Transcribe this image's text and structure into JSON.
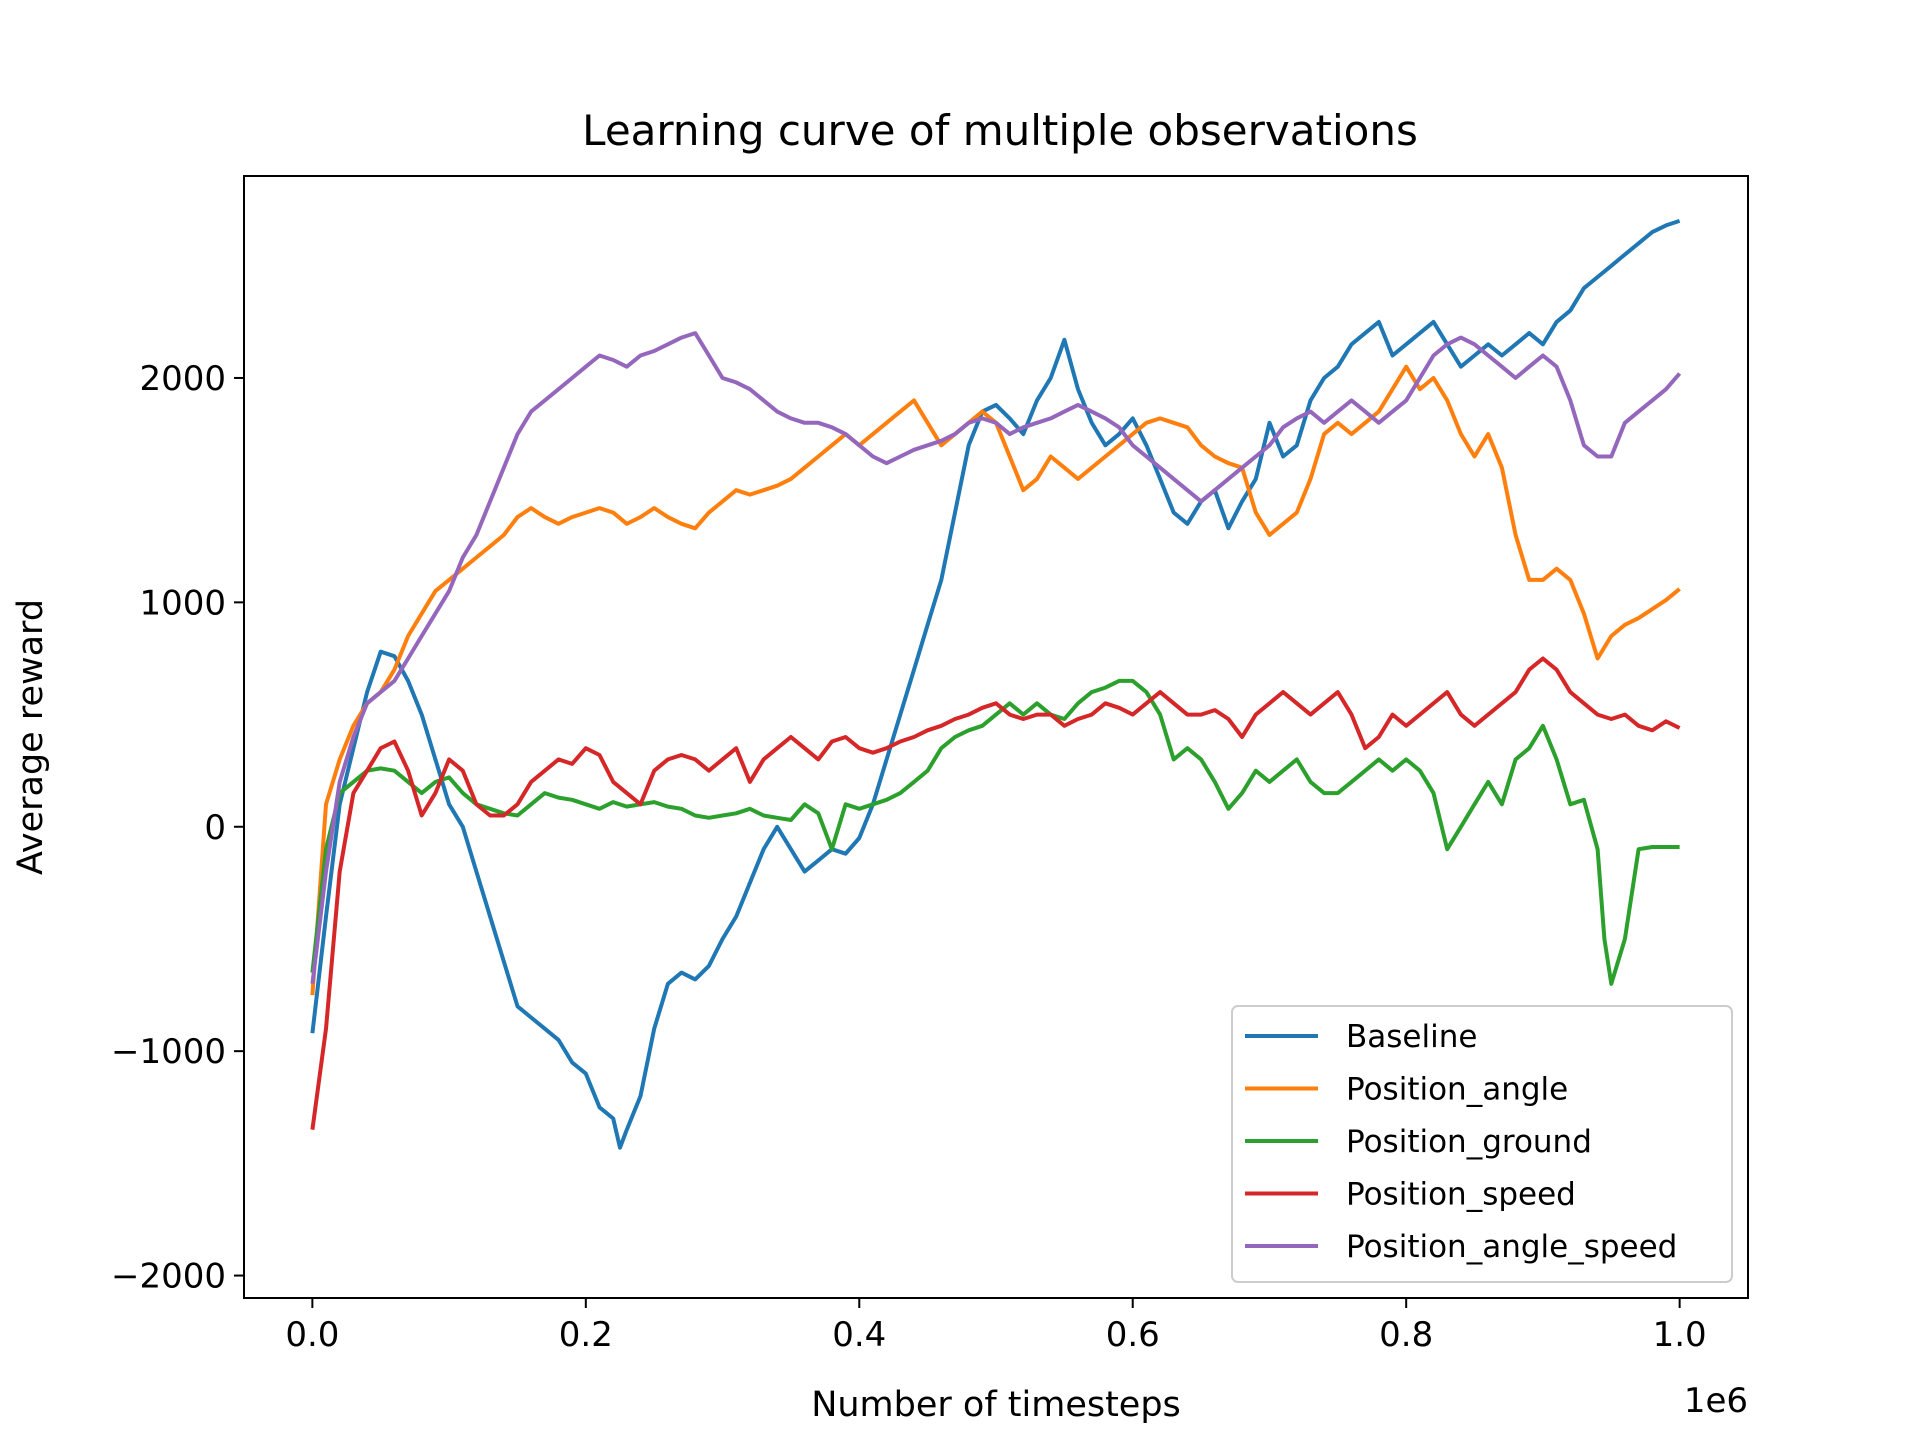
{
  "chart_data": {
    "type": "line",
    "title": "Learning curve of multiple observations",
    "xlabel": "Number of timesteps",
    "ylabel": "Average reward",
    "x_offset_label": "1e6",
    "xlim": [
      -0.05,
      1.05
    ],
    "ylim": [
      -2100,
      2900
    ],
    "xticks": [
      0.0,
      0.2,
      0.4,
      0.6,
      0.8,
      1.0
    ],
    "xtick_labels": [
      "0.0",
      "0.2",
      "0.4",
      "0.6",
      "0.8",
      "1.0"
    ],
    "yticks": [
      -2000,
      -1000,
      0,
      1000,
      2000
    ],
    "ytick_labels": [
      "−2000",
      "−1000",
      "0",
      "1000",
      "2000"
    ],
    "grid": false,
    "legend_position": "lower-right",
    "series": [
      {
        "name": "Baseline",
        "color": "#1f77b4",
        "x": [
          0.0,
          0.01,
          0.02,
          0.03,
          0.04,
          0.05,
          0.06,
          0.07,
          0.08,
          0.09,
          0.1,
          0.11,
          0.12,
          0.13,
          0.14,
          0.15,
          0.16,
          0.17,
          0.18,
          0.19,
          0.2,
          0.21,
          0.22,
          0.225,
          0.23,
          0.24,
          0.25,
          0.26,
          0.27,
          0.28,
          0.29,
          0.3,
          0.31,
          0.32,
          0.33,
          0.34,
          0.35,
          0.36,
          0.37,
          0.38,
          0.39,
          0.4,
          0.41,
          0.42,
          0.43,
          0.44,
          0.45,
          0.46,
          0.47,
          0.48,
          0.49,
          0.5,
          0.51,
          0.52,
          0.53,
          0.54,
          0.55,
          0.56,
          0.57,
          0.58,
          0.59,
          0.6,
          0.61,
          0.62,
          0.63,
          0.64,
          0.65,
          0.66,
          0.67,
          0.68,
          0.69,
          0.7,
          0.71,
          0.72,
          0.73,
          0.74,
          0.75,
          0.76,
          0.77,
          0.78,
          0.79,
          0.8,
          0.81,
          0.82,
          0.83,
          0.84,
          0.85,
          0.86,
          0.87,
          0.88,
          0.89,
          0.9,
          0.91,
          0.92,
          0.93,
          0.94,
          0.95,
          0.96,
          0.97,
          0.98,
          0.99,
          1.0
        ],
        "values": [
          -920,
          -400,
          100,
          350,
          600,
          780,
          760,
          650,
          500,
          300,
          100,
          0,
          -200,
          -400,
          -600,
          -800,
          -850,
          -900,
          -950,
          -1050,
          -1100,
          -1250,
          -1300,
          -1430,
          -1350,
          -1200,
          -900,
          -700,
          -650,
          -680,
          -620,
          -500,
          -400,
          -250,
          -100,
          0,
          -100,
          -200,
          -150,
          -100,
          -120,
          -50,
          100,
          300,
          500,
          700,
          900,
          1100,
          1400,
          1700,
          1850,
          1880,
          1820,
          1750,
          1900,
          2000,
          2170,
          1950,
          1800,
          1700,
          1750,
          1820,
          1700,
          1550,
          1400,
          1350,
          1450,
          1500,
          1330,
          1450,
          1550,
          1800,
          1650,
          1700,
          1900,
          2000,
          2050,
          2150,
          2200,
          2250,
          2100,
          2150,
          2200,
          2250,
          2150,
          2050,
          2100,
          2150,
          2100,
          2150,
          2200,
          2150,
          2250,
          2300,
          2400,
          2450,
          2500,
          2550,
          2600,
          2650,
          2680,
          2700
        ]
      },
      {
        "name": "Position_angle",
        "color": "#ff7f0e",
        "x": [
          0.0,
          0.01,
          0.02,
          0.03,
          0.04,
          0.05,
          0.06,
          0.07,
          0.08,
          0.09,
          0.1,
          0.11,
          0.12,
          0.13,
          0.14,
          0.15,
          0.16,
          0.17,
          0.18,
          0.19,
          0.2,
          0.21,
          0.22,
          0.23,
          0.24,
          0.25,
          0.26,
          0.27,
          0.28,
          0.29,
          0.3,
          0.31,
          0.32,
          0.33,
          0.34,
          0.35,
          0.36,
          0.37,
          0.38,
          0.39,
          0.4,
          0.41,
          0.42,
          0.43,
          0.44,
          0.45,
          0.46,
          0.47,
          0.48,
          0.49,
          0.5,
          0.51,
          0.52,
          0.53,
          0.54,
          0.55,
          0.56,
          0.57,
          0.58,
          0.59,
          0.6,
          0.61,
          0.62,
          0.63,
          0.64,
          0.65,
          0.66,
          0.67,
          0.68,
          0.69,
          0.7,
          0.71,
          0.72,
          0.73,
          0.74,
          0.75,
          0.76,
          0.77,
          0.78,
          0.79,
          0.8,
          0.81,
          0.82,
          0.83,
          0.84,
          0.85,
          0.86,
          0.87,
          0.88,
          0.89,
          0.9,
          0.91,
          0.92,
          0.93,
          0.94,
          0.95,
          0.96,
          0.97,
          0.98,
          0.99,
          1.0
        ],
        "values": [
          -750,
          100,
          300,
          450,
          550,
          600,
          700,
          850,
          950,
          1050,
          1100,
          1150,
          1200,
          1250,
          1300,
          1380,
          1420,
          1380,
          1350,
          1380,
          1400,
          1420,
          1400,
          1350,
          1380,
          1420,
          1380,
          1350,
          1330,
          1400,
          1450,
          1500,
          1480,
          1500,
          1520,
          1550,
          1600,
          1650,
          1700,
          1750,
          1700,
          1750,
          1800,
          1850,
          1900,
          1800,
          1700,
          1750,
          1800,
          1850,
          1800,
          1650,
          1500,
          1550,
          1650,
          1600,
          1550,
          1600,
          1650,
          1700,
          1750,
          1800,
          1820,
          1800,
          1780,
          1700,
          1650,
          1620,
          1600,
          1400,
          1300,
          1350,
          1400,
          1550,
          1750,
          1800,
          1750,
          1800,
          1850,
          1950,
          2050,
          1950,
          2000,
          1900,
          1750,
          1650,
          1750,
          1600,
          1300,
          1100,
          1100,
          1150,
          1100,
          950,
          750,
          850,
          900,
          930,
          970,
          1010,
          1060
        ]
      },
      {
        "name": "Position_ground",
        "color": "#2ca02c",
        "x": [
          0.0,
          0.01,
          0.02,
          0.03,
          0.04,
          0.05,
          0.06,
          0.07,
          0.08,
          0.09,
          0.1,
          0.11,
          0.12,
          0.13,
          0.14,
          0.15,
          0.16,
          0.17,
          0.18,
          0.19,
          0.2,
          0.21,
          0.22,
          0.23,
          0.24,
          0.25,
          0.26,
          0.27,
          0.28,
          0.29,
          0.3,
          0.31,
          0.32,
          0.33,
          0.34,
          0.35,
          0.36,
          0.37,
          0.38,
          0.39,
          0.4,
          0.41,
          0.42,
          0.43,
          0.44,
          0.45,
          0.46,
          0.47,
          0.48,
          0.49,
          0.5,
          0.51,
          0.52,
          0.53,
          0.54,
          0.55,
          0.56,
          0.57,
          0.58,
          0.59,
          0.6,
          0.61,
          0.62,
          0.63,
          0.64,
          0.65,
          0.66,
          0.67,
          0.68,
          0.69,
          0.7,
          0.71,
          0.72,
          0.73,
          0.74,
          0.75,
          0.76,
          0.77,
          0.78,
          0.79,
          0.8,
          0.81,
          0.82,
          0.83,
          0.84,
          0.85,
          0.86,
          0.87,
          0.88,
          0.89,
          0.9,
          0.91,
          0.92,
          0.93,
          0.94,
          0.945,
          0.95,
          0.96,
          0.97,
          0.98,
          0.99,
          1.0
        ],
        "values": [
          -650,
          -100,
          150,
          200,
          250,
          260,
          250,
          200,
          150,
          200,
          220,
          150,
          100,
          80,
          60,
          50,
          100,
          150,
          130,
          120,
          100,
          80,
          110,
          90,
          100,
          110,
          90,
          80,
          50,
          40,
          50,
          60,
          80,
          50,
          40,
          30,
          100,
          60,
          -100,
          100,
          80,
          100,
          120,
          150,
          200,
          250,
          350,
          400,
          430,
          450,
          500,
          550,
          500,
          550,
          500,
          480,
          550,
          600,
          620,
          650,
          650,
          600,
          500,
          300,
          350,
          300,
          200,
          80,
          150,
          250,
          200,
          250,
          300,
          200,
          150,
          150,
          200,
          250,
          300,
          250,
          300,
          250,
          150,
          -100,
          0,
          100,
          200,
          100,
          300,
          350,
          450,
          300,
          100,
          120,
          -100,
          -500,
          -700,
          -500,
          -100,
          -90,
          -90,
          -90
        ]
      },
      {
        "name": "Position_speed",
        "color": "#d62728",
        "x": [
          0.0,
          0.01,
          0.02,
          0.03,
          0.04,
          0.05,
          0.06,
          0.07,
          0.08,
          0.09,
          0.1,
          0.11,
          0.12,
          0.13,
          0.14,
          0.15,
          0.16,
          0.17,
          0.18,
          0.19,
          0.2,
          0.21,
          0.22,
          0.23,
          0.24,
          0.25,
          0.26,
          0.27,
          0.28,
          0.29,
          0.3,
          0.31,
          0.32,
          0.33,
          0.34,
          0.35,
          0.36,
          0.37,
          0.38,
          0.39,
          0.4,
          0.41,
          0.42,
          0.43,
          0.44,
          0.45,
          0.46,
          0.47,
          0.48,
          0.49,
          0.5,
          0.51,
          0.52,
          0.53,
          0.54,
          0.55,
          0.56,
          0.57,
          0.58,
          0.59,
          0.6,
          0.61,
          0.62,
          0.63,
          0.64,
          0.65,
          0.66,
          0.67,
          0.68,
          0.69,
          0.7,
          0.71,
          0.72,
          0.73,
          0.74,
          0.75,
          0.76,
          0.77,
          0.78,
          0.79,
          0.8,
          0.81,
          0.82,
          0.83,
          0.84,
          0.85,
          0.86,
          0.87,
          0.88,
          0.89,
          0.9,
          0.91,
          0.92,
          0.93,
          0.94,
          0.95,
          0.96,
          0.97,
          0.98,
          0.99,
          1.0
        ],
        "values": [
          -1350,
          -900,
          -200,
          150,
          250,
          350,
          380,
          250,
          50,
          150,
          300,
          250,
          100,
          50,
          50,
          100,
          200,
          250,
          300,
          280,
          350,
          320,
          200,
          150,
          100,
          250,
          300,
          320,
          300,
          250,
          300,
          350,
          200,
          300,
          350,
          400,
          350,
          300,
          380,
          400,
          350,
          330,
          350,
          380,
          400,
          430,
          450,
          480,
          500,
          530,
          550,
          500,
          480,
          500,
          500,
          450,
          480,
          500,
          550,
          530,
          500,
          550,
          600,
          550,
          500,
          500,
          520,
          480,
          400,
          500,
          550,
          600,
          550,
          500,
          550,
          600,
          500,
          350,
          400,
          500,
          450,
          500,
          550,
          600,
          500,
          450,
          500,
          550,
          600,
          700,
          750,
          700,
          600,
          550,
          500,
          480,
          500,
          450,
          430,
          470,
          440
        ]
      },
      {
        "name": "Position_angle_speed",
        "color": "#9467bd",
        "x": [
          0.0,
          0.01,
          0.02,
          0.03,
          0.04,
          0.05,
          0.06,
          0.07,
          0.08,
          0.09,
          0.1,
          0.11,
          0.12,
          0.13,
          0.14,
          0.15,
          0.16,
          0.17,
          0.18,
          0.19,
          0.2,
          0.21,
          0.22,
          0.23,
          0.24,
          0.25,
          0.26,
          0.27,
          0.28,
          0.29,
          0.3,
          0.31,
          0.32,
          0.33,
          0.34,
          0.35,
          0.36,
          0.37,
          0.38,
          0.39,
          0.4,
          0.41,
          0.42,
          0.43,
          0.44,
          0.45,
          0.46,
          0.47,
          0.48,
          0.49,
          0.5,
          0.51,
          0.52,
          0.53,
          0.54,
          0.55,
          0.56,
          0.57,
          0.58,
          0.59,
          0.6,
          0.61,
          0.62,
          0.63,
          0.64,
          0.65,
          0.66,
          0.67,
          0.68,
          0.69,
          0.7,
          0.71,
          0.72,
          0.73,
          0.74,
          0.75,
          0.76,
          0.77,
          0.78,
          0.79,
          0.8,
          0.81,
          0.82,
          0.83,
          0.84,
          0.85,
          0.86,
          0.87,
          0.88,
          0.89,
          0.9,
          0.91,
          0.92,
          0.93,
          0.94,
          0.95,
          0.96,
          0.97,
          0.98,
          0.99,
          1.0
        ],
        "values": [
          -700,
          -200,
          200,
          400,
          550,
          600,
          650,
          750,
          850,
          950,
          1050,
          1200,
          1300,
          1450,
          1600,
          1750,
          1850,
          1900,
          1950,
          2000,
          2050,
          2100,
          2080,
          2050,
          2100,
          2120,
          2150,
          2180,
          2200,
          2100,
          2000,
          1980,
          1950,
          1900,
          1850,
          1820,
          1800,
          1800,
          1780,
          1750,
          1700,
          1650,
          1620,
          1650,
          1680,
          1700,
          1720,
          1750,
          1800,
          1820,
          1800,
          1750,
          1780,
          1800,
          1820,
          1850,
          1880,
          1850,
          1820,
          1780,
          1700,
          1650,
          1600,
          1550,
          1500,
          1450,
          1500,
          1550,
          1600,
          1650,
          1700,
          1780,
          1820,
          1850,
          1800,
          1850,
          1900,
          1850,
          1800,
          1850,
          1900,
          2000,
          2100,
          2150,
          2180,
          2150,
          2100,
          2050,
          2000,
          2050,
          2100,
          2050,
          1900,
          1700,
          1650,
          1650,
          1800,
          1850,
          1900,
          1950,
          2020
        ]
      }
    ]
  }
}
